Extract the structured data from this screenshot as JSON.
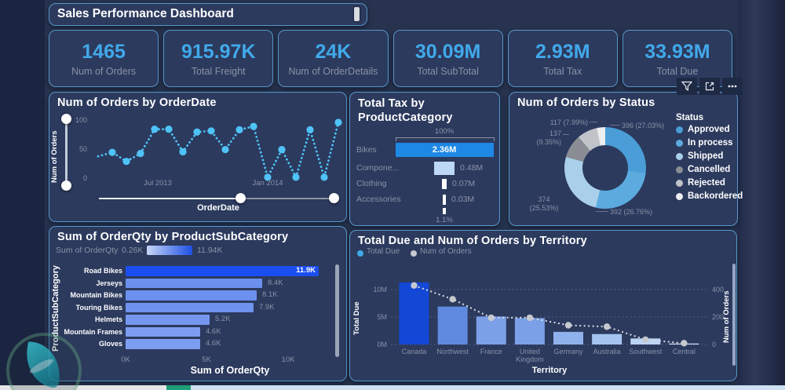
{
  "title_bar": {
    "title": "Sales Performance Dashboard"
  },
  "kpis": [
    {
      "value": "1465",
      "label": "Num of Orders"
    },
    {
      "value": "915.97K",
      "label": "Total Freight"
    },
    {
      "value": "24K",
      "label": "Num of OrderDetails"
    },
    {
      "value": "30.09M",
      "label": "Total SubTotal"
    },
    {
      "value": "2.93M",
      "label": "Total Tax"
    },
    {
      "value": "33.93M",
      "label": "Total Due"
    }
  ],
  "visual_toolbar": {
    "icons": [
      "filter",
      "focus-mode",
      "more-options"
    ]
  },
  "chart_data": [
    {
      "id": "num-of-orders-by-orderdate",
      "type": "line",
      "title": "Num of Orders by OrderDate",
      "xlabel": "OrderDate",
      "ylabel": "Num of Orders",
      "x_ticks": [
        "Jul 2013",
        "Jan 2014"
      ],
      "y_ticks": [
        "0",
        "50",
        "100"
      ],
      "ylim": [
        0,
        100
      ],
      "values": [
        40,
        47,
        31,
        45,
        88,
        88,
        48,
        83,
        85,
        52,
        87,
        93,
        3,
        52,
        3,
        87,
        3,
        100
      ],
      "color": "#4FC3F7",
      "style": {
        "dotted": true,
        "markers": true,
        "zoom_sliders": true
      }
    },
    {
      "id": "total-tax-by-productcategory",
      "type": "funnel",
      "title": "Total Tax by ProductCategory",
      "title_lines": [
        "Total Tax by",
        "ProductCategory"
      ],
      "top_label": "100%",
      "bottom_label": "1.1%",
      "categories": [
        "Bikes",
        "Compone...",
        "Clothing",
        "Accessories"
      ],
      "value_labels": [
        "2.36M",
        "0.48M",
        "0.07M",
        "0.03M"
      ],
      "values_m": [
        2.36,
        0.48,
        0.07,
        0.03
      ],
      "colors": [
        "#1E88E5",
        "#BCD8F4",
        "#FFFFFF",
        "#FFFFFF"
      ]
    },
    {
      "id": "num-of-orders-by-status",
      "type": "donut",
      "title": "Num of Orders by Status",
      "legend_title": "Status",
      "legend_position": "right",
      "slices": [
        {
          "label": "Approved",
          "value": 396,
          "pct": 27.03,
          "color": "#4A9DD6"
        },
        {
          "label": "In process",
          "value": 392,
          "pct": 26.76,
          "color": "#5BABDF"
        },
        {
          "label": "Shipped",
          "value": 374,
          "pct": 25.53,
          "color": "#A9CFEA"
        },
        {
          "label": "Cancelled",
          "value": 137,
          "pct": 9.35,
          "color": "#8A8E94"
        },
        {
          "label": "Rejected",
          "value": 117,
          "pct": 7.99,
          "color": "#C0C4C9"
        },
        {
          "label": "Backordered",
          "value": null,
          "pct": 3.34,
          "color": "#ECEEF0"
        }
      ],
      "callouts": {
        "approved": "396 (27.03%)",
        "in_process": "392 (26.76%)",
        "shipped": [
          "374",
          "(25.53%)"
        ],
        "cancelled": [
          "137",
          "(9.35%)"
        ],
        "rejected": "117 (7.99%)"
      }
    },
    {
      "id": "sum-of-orderqty-by-productsubcategory",
      "type": "bar",
      "orientation": "horizontal",
      "title": "Sum of OrderQty by ProductSubCategory",
      "xlabel": "Sum of OrderQty",
      "ylabel": "ProductSubCategory",
      "gradient_legend": {
        "label": "Sum of OrderQty",
        "min": "0.26K",
        "max": "11.94K",
        "colors": [
          "#C7D6F7",
          "#1E50E4"
        ]
      },
      "categories": [
        "Road Bikes",
        "Jerseys",
        "Mountain Bikes",
        "Touring Bikes",
        "Helmets",
        "Mountain Frames",
        "Gloves"
      ],
      "values_k": [
        11.9,
        8.4,
        8.1,
        7.9,
        5.2,
        4.6,
        4.6
      ],
      "value_labels": [
        "11.9K",
        "8.4K",
        "8.1K",
        "7.9K",
        "5.2K",
        "4.6K",
        "4.6K"
      ],
      "colors": [
        "#1B4EF0",
        "#6B90EE",
        "#6B90EE",
        "#6E92EE",
        "#7697F0",
        "#7D9DF1",
        "#7D9DF1"
      ],
      "x_ticks": [
        "0K",
        "5K",
        "10K"
      ],
      "xlim": [
        0,
        11.9
      ]
    },
    {
      "id": "total-due-and-num-of-orders-by-territory",
      "type": "combo",
      "title": "Total Due and Num of Orders by Territory",
      "legend": [
        "Total Due",
        "Num of Orders"
      ],
      "legend_colors": [
        "#41A9EA",
        "#C5C9CE"
      ],
      "xlabel": "Territory",
      "y_left": {
        "label": "Total Due",
        "ticks": [
          "0M",
          "5M",
          "10M"
        ],
        "lim_m": [
          0,
          12
        ]
      },
      "y_right": {
        "label": "Num of Orders",
        "ticks": [
          "0",
          "200",
          "400"
        ],
        "lim": [
          0,
          480
        ]
      },
      "categories": [
        "Canada",
        "Northwest",
        "France",
        "United Kingdom",
        "Germany",
        "Australia",
        "Southwest",
        "Central"
      ],
      "bar_values_m": [
        11.3,
        6.9,
        5.1,
        4.8,
        2.3,
        1.9,
        1.1,
        0.15
      ],
      "bar_colors": [
        "#1347D6",
        "#5F8AE0",
        "#7BA0E8",
        "#7BA0E8",
        "#8FB2EC",
        "#A5C4F0",
        "#BDD5F5",
        "#D6E4FA"
      ],
      "line_values": [
        430,
        330,
        195,
        195,
        140,
        130,
        35,
        10
      ],
      "line_color": "#D9DCE0"
    }
  ]
}
